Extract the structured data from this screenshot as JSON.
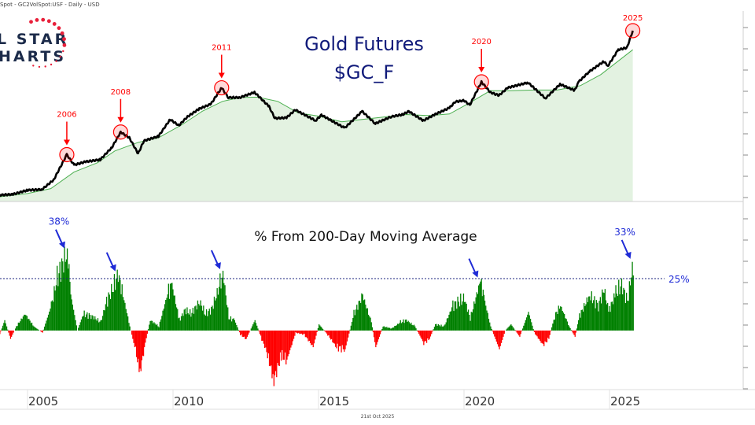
{
  "header": {
    "source_line": "Spot - GC2VolSpot:USF - Daily - USD"
  },
  "logo": {
    "text_line1": "L STAR",
    "text_line2": "HARTS"
  },
  "footer": {
    "date": "21st Oct 2025"
  },
  "colors": {
    "price": "#000000",
    "ma_line": "#4caf50",
    "ma_fill": "#e3f2e1",
    "positive": "#008000",
    "negative": "#ff0000",
    "annotation_red": "#ff0000",
    "annotation_blue": "#1f2bd6",
    "title": "#101a7a"
  },
  "chart_data": [
    {
      "type": "line",
      "title": "Gold Futures",
      "subtitle": "$GC_F",
      "y_scale": "log",
      "grid": false,
      "x_ticks": [
        "2005",
        "2010",
        "2015",
        "2020",
        "2025"
      ],
      "series": [
        {
          "role": "price",
          "x": [
            2004.0,
            2004.5,
            2005.0,
            2005.5,
            2005.9,
            2006.35,
            2006.6,
            2007.0,
            2007.5,
            2007.9,
            2008.2,
            2008.5,
            2008.8,
            2009.0,
            2009.5,
            2009.9,
            2010.2,
            2010.5,
            2010.9,
            2011.3,
            2011.67,
            2011.9,
            2012.3,
            2012.8,
            2013.3,
            2013.5,
            2013.9,
            2014.2,
            2014.9,
            2015.1,
            2015.9,
            2016.5,
            2016.95,
            2017.5,
            2017.9,
            2018.1,
            2018.6,
            2019.0,
            2019.5,
            2019.7,
            2020.0,
            2020.2,
            2020.6,
            2020.9,
            2021.2,
            2021.5,
            2022.2,
            2022.8,
            2023.3,
            2023.8,
            2023.95,
            2024.3,
            2024.8,
            2024.95,
            2025.3,
            2025.6,
            2025.8
          ],
          "values": [
            400,
            405,
            430,
            435,
            500,
            720,
            620,
            650,
            670,
            800,
            1000,
            920,
            730,
            880,
            940,
            1200,
            1100,
            1250,
            1400,
            1500,
            1900,
            1650,
            1650,
            1780,
            1450,
            1220,
            1230,
            1380,
            1180,
            1280,
            1060,
            1350,
            1130,
            1250,
            1290,
            1350,
            1180,
            1290,
            1420,
            1550,
            1580,
            1480,
            2070,
            1780,
            1700,
            1900,
            2050,
            1630,
            2000,
            1830,
            2080,
            2400,
            2780,
            2620,
            3300,
            3400,
            4350
          ]
        },
        {
          "role": "moving_average_200d",
          "x": [
            2004.0,
            2005.0,
            2005.8,
            2006.6,
            2007.4,
            2008.0,
            2008.8,
            2009.5,
            2010.3,
            2011.0,
            2011.7,
            2012.3,
            2012.9,
            2013.6,
            2014.3,
            2015.0,
            2015.8,
            2016.5,
            2017.2,
            2018.0,
            2018.8,
            2019.5,
            2020.2,
            2020.9,
            2021.6,
            2022.4,
            2023.2,
            2024.0,
            2024.7,
            2025.3,
            2025.8
          ],
          "values": [
            390,
            410,
            440,
            560,
            640,
            760,
            860,
            920,
            1110,
            1350,
            1560,
            1650,
            1660,
            1560,
            1320,
            1260,
            1160,
            1200,
            1240,
            1290,
            1270,
            1300,
            1530,
            1820,
            1820,
            1840,
            1840,
            1960,
            2300,
            2800,
            3300
          ]
        }
      ],
      "annotations": [
        {
          "label": "2006",
          "x": 2006.35,
          "value": 720
        },
        {
          "label": "2008",
          "x": 2008.2,
          "value": 1000
        },
        {
          "label": "2011",
          "x": 2011.67,
          "value": 1900
        },
        {
          "label": "2020",
          "x": 2020.6,
          "value": 2070
        },
        {
          "label": "2025",
          "x": 2025.8,
          "value": 4350
        }
      ]
    },
    {
      "type": "bar",
      "title": "% From 200-Day Moving Average",
      "reference_line": {
        "value": 25,
        "label": "25%"
      },
      "x": [
        2004.0,
        2004.2,
        2004.4,
        2004.6,
        2004.9,
        2005.2,
        2005.5,
        2005.8,
        2006.0,
        2006.35,
        2006.5,
        2006.7,
        2006.9,
        2007.2,
        2007.5,
        2007.7,
        2007.9,
        2008.1,
        2008.3,
        2008.5,
        2008.7,
        2008.85,
        2009.0,
        2009.2,
        2009.5,
        2009.8,
        2009.95,
        2010.2,
        2010.4,
        2010.6,
        2010.9,
        2011.1,
        2011.3,
        2011.6,
        2011.7,
        2011.9,
        2012.1,
        2012.3,
        2012.5,
        2012.8,
        2013.0,
        2013.2,
        2013.45,
        2013.7,
        2013.9,
        2014.2,
        2014.5,
        2014.8,
        2015.0,
        2015.3,
        2015.6,
        2015.9,
        2016.2,
        2016.5,
        2016.8,
        2016.95,
        2017.2,
        2017.5,
        2017.8,
        2018.0,
        2018.3,
        2018.6,
        2018.8,
        2019.0,
        2019.3,
        2019.6,
        2019.8,
        2020.0,
        2020.2,
        2020.55,
        2020.7,
        2020.9,
        2021.2,
        2021.4,
        2021.6,
        2021.9,
        2022.2,
        2022.4,
        2022.7,
        2022.9,
        2023.1,
        2023.3,
        2023.6,
        2023.8,
        2023.95,
        2024.3,
        2024.6,
        2024.8,
        2024.95,
        2025.2,
        2025.4,
        2025.6,
        2025.8
      ],
      "values": [
        -3,
        5,
        -4,
        2,
        8,
        2,
        -1,
        12,
        25,
        38,
        15,
        0,
        8,
        7,
        4,
        14,
        20,
        27,
        15,
        2,
        -10,
        -20,
        -8,
        5,
        2,
        18,
        22,
        5,
        10,
        8,
        14,
        8,
        10,
        22,
        28,
        6,
        5,
        -2,
        -4,
        5,
        -3,
        -10,
        -24,
        -12,
        -14,
        -1,
        -2,
        -8,
        3,
        -2,
        -8,
        -9,
        8,
        17,
        4,
        -8,
        2,
        1,
        4,
        5,
        2,
        -6,
        -4,
        3,
        2,
        12,
        14,
        15,
        6,
        24,
        14,
        2,
        -9,
        0,
        3,
        -3,
        9,
        -1,
        -7,
        -4,
        7,
        12,
        2,
        -3,
        7,
        17,
        12,
        20,
        9,
        18,
        22,
        14,
        33
      ],
      "annotations": [
        {
          "label": "38%",
          "x": 2006.35,
          "value": 38
        },
        {
          "label": "",
          "x": 2008.1,
          "value": 27
        },
        {
          "label": "",
          "x": 2011.7,
          "value": 28
        },
        {
          "label": "",
          "x": 2020.55,
          "value": 24
        },
        {
          "label": "33%",
          "x": 2025.8,
          "value": 33
        }
      ]
    }
  ]
}
